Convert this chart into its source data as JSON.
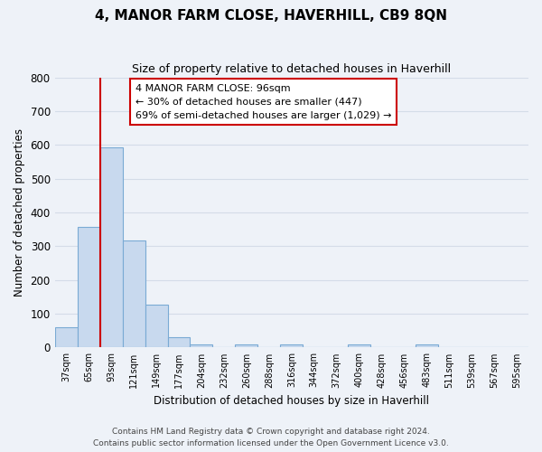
{
  "title": "4, MANOR FARM CLOSE, HAVERHILL, CB9 8QN",
  "subtitle": "Size of property relative to detached houses in Haverhill",
  "xlabel": "Distribution of detached houses by size in Haverhill",
  "ylabel": "Number of detached properties",
  "bar_labels": [
    "37sqm",
    "65sqm",
    "93sqm",
    "121sqm",
    "149sqm",
    "177sqm",
    "204sqm",
    "232sqm",
    "260sqm",
    "288sqm",
    "316sqm",
    "344sqm",
    "372sqm",
    "400sqm",
    "428sqm",
    "456sqm",
    "483sqm",
    "511sqm",
    "539sqm",
    "567sqm",
    "595sqm"
  ],
  "bar_values": [
    60,
    358,
    592,
    316,
    128,
    30,
    10,
    0,
    10,
    0,
    8,
    0,
    0,
    8,
    0,
    0,
    8,
    0,
    0,
    0,
    0
  ],
  "bar_color": "#c8d9ee",
  "bar_edge_color": "#7aaad4",
  "grid_color": "#d4dce8",
  "background_color": "#eef2f8",
  "ylim": [
    0,
    800
  ],
  "yticks": [
    0,
    100,
    200,
    300,
    400,
    500,
    600,
    700,
    800
  ],
  "property_line_color": "#cc0000",
  "annotation_text_line1": "4 MANOR FARM CLOSE: 96sqm",
  "annotation_text_line2": "← 30% of detached houses are smaller (447)",
  "annotation_text_line3": "69% of semi-detached houses are larger (1,029) →",
  "annotation_box_facecolor": "#ffffff",
  "annotation_box_edge": "#cc0000",
  "footer_line1": "Contains HM Land Registry data © Crown copyright and database right 2024.",
  "footer_line2": "Contains public sector information licensed under the Open Government Licence v3.0."
}
